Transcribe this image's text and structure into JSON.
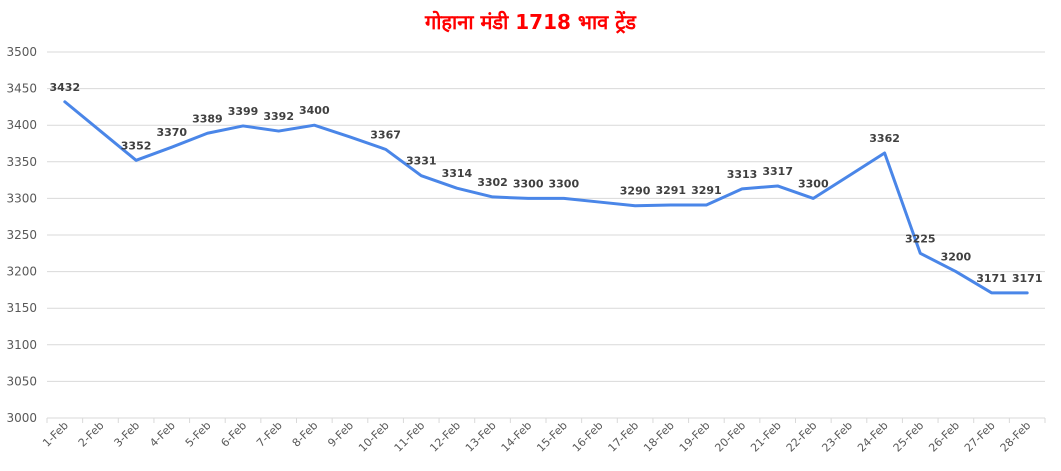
{
  "chart_data": {
    "type": "line",
    "title": "गोहाना मंडी 1718 भाव ट्रेंड",
    "xlabel": "",
    "ylabel": "",
    "ylim": [
      3000,
      3500
    ],
    "yticks": [
      3000,
      3050,
      3100,
      3150,
      3200,
      3250,
      3300,
      3350,
      3400,
      3450,
      3500
    ],
    "grid": true,
    "line_color": "#4a86e8",
    "categories": [
      "1-Feb",
      "2-Feb",
      "3-Feb",
      "4-Feb",
      "5-Feb",
      "6-Feb",
      "7-Feb",
      "8-Feb",
      "9-Feb",
      "10-Feb",
      "11-Feb",
      "12-Feb",
      "13-Feb",
      "14-Feb",
      "15-Feb",
      "16-Feb",
      "17-Feb",
      "18-Feb",
      "19-Feb",
      "20-Feb",
      "21-Feb",
      "22-Feb",
      "23-Feb",
      "24-Feb",
      "25-Feb",
      "26-Feb",
      "27-Feb",
      "28-Feb"
    ],
    "series": [
      {
        "values": [
          3432,
          3392,
          3352,
          3370,
          3389,
          3399,
          3392,
          3400,
          3384,
          3367,
          3331,
          3314,
          3302,
          3300,
          3300,
          3295,
          3290,
          3291,
          3291,
          3313,
          3317,
          3300,
          3331,
          3362,
          3225,
          3200,
          3171,
          3171
        ],
        "labels": [
          "3432",
          "",
          "3352",
          "3370",
          "3389",
          "3399",
          "3392",
          "3400",
          "",
          "3367",
          "3331",
          "3314",
          "3302",
          "3300",
          "3300",
          "",
          "3290",
          "3291",
          "3291",
          "3313",
          "3317",
          "3300",
          "",
          "3362",
          "3225",
          "3200",
          "3171",
          "3171"
        ]
      }
    ]
  }
}
